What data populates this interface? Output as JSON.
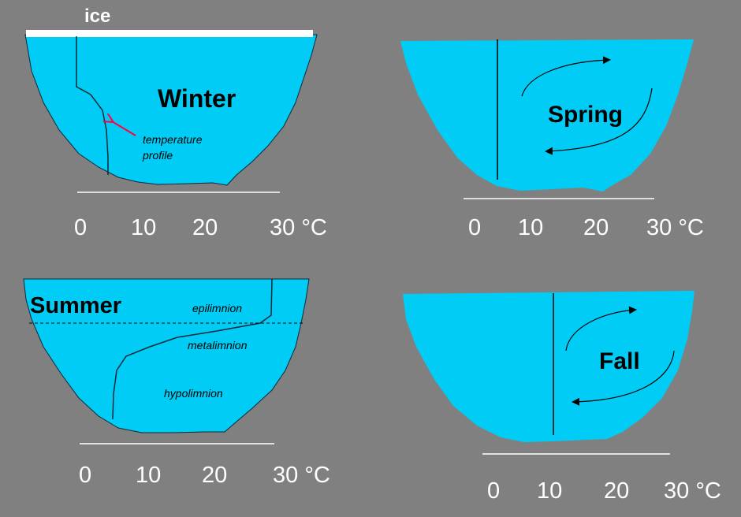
{
  "colors": {
    "background": "#808080",
    "water": "#00ccf5",
    "ice": "#ffffff",
    "arrow_red": "#ff0040",
    "axis": "#ffffff"
  },
  "panels": {
    "winter": {
      "label": "Winter",
      "ice_label": "ice",
      "profile_label_line1": "temperature",
      "profile_label_line2": "profile",
      "ticks": [
        "0",
        "10",
        "20",
        "30 °C"
      ]
    },
    "spring": {
      "label": "Spring",
      "ticks": [
        "0",
        "10",
        "20",
        "30 °C"
      ]
    },
    "summer": {
      "label": "Summer",
      "layer_epi": "epilimnion",
      "layer_meta": "metalimnion",
      "layer_hypo": "hypolimnion",
      "ticks": [
        "0",
        "10",
        "20",
        "30 °C"
      ]
    },
    "fall": {
      "label": "Fall",
      "ticks": [
        "0",
        "10",
        "20",
        "30 °C"
      ]
    }
  }
}
